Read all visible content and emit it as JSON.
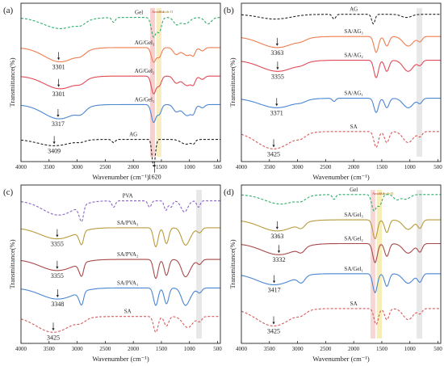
{
  "chart_data": [
    {
      "type": "line",
      "panel_label": "(a)",
      "xlabel": "Wavenumber (cm⁻¹)",
      "ylabel": "Transmittance(%)",
      "xlim": [
        4000,
        450
      ],
      "x_ticks": [
        4000,
        3500,
        3000,
        2500,
        2000,
        1500,
        1000,
        500
      ],
      "band_labels": [
        "Amide I",
        "Amide II"
      ],
      "bands": [
        {
          "label": "Amide I",
          "x0": 1700,
          "x1": 1615,
          "color": "#f3b6b6"
        },
        {
          "label": "Amide II",
          "x0": 1590,
          "x1": 1500,
          "color": "#f5e3a0"
        }
      ],
      "series": [
        {
          "name": "Gel",
          "color": "#2fae6a",
          "dash": "3,2",
          "base": 0.09,
          "depth": 1.0,
          "peaks": [
            [
              3300,
              300,
              0.07
            ],
            [
              2930,
              80,
              0.02
            ],
            [
              2350,
              30,
              0.03
            ],
            [
              1640,
              40,
              0.12
            ],
            [
              1540,
              40,
              0.09
            ],
            [
              1235,
              50,
              0.04
            ],
            [
              1080,
              80,
              0.04
            ],
            [
              670,
              60,
              0.04
            ]
          ]
        },
        {
          "name": "AG/Gel₃",
          "color": "#ee7d4f",
          "dash": "",
          "base": 0.28,
          "depth": 1.0,
          "peaks": [
            [
              3301,
              280,
              0.09
            ],
            [
              2930,
              80,
              0.02
            ],
            [
              1640,
              40,
              0.09
            ],
            [
              1540,
              40,
              0.06
            ],
            [
              1240,
              50,
              0.04
            ],
            [
              1040,
              90,
              0.05
            ],
            [
              930,
              30,
              0.03
            ],
            [
              770,
              40,
              0.02
            ]
          ]
        },
        {
          "name": "AG/Gel₂",
          "color": "#e24a55",
          "dash": "",
          "base": 0.46,
          "depth": 1.0,
          "peaks": [
            [
              3301,
              280,
              0.08
            ],
            [
              2930,
              80,
              0.02
            ],
            [
              1640,
              40,
              0.11
            ],
            [
              1540,
              40,
              0.06
            ],
            [
              1240,
              50,
              0.04
            ],
            [
              1040,
              90,
              0.06
            ],
            [
              930,
              30,
              0.03
            ],
            [
              770,
              40,
              0.02
            ]
          ]
        },
        {
          "name": "AG/Gel₁",
          "color": "#4a86d4",
          "dash": "",
          "base": 0.64,
          "depth": 1.0,
          "peaks": [
            [
              3317,
              280,
              0.09
            ],
            [
              2930,
              80,
              0.03
            ],
            [
              1640,
              40,
              0.11
            ],
            [
              1540,
              40,
              0.06
            ],
            [
              1240,
              50,
              0.04
            ],
            [
              1040,
              90,
              0.07
            ],
            [
              930,
              30,
              0.03
            ],
            [
              770,
              40,
              0.02
            ]
          ]
        },
        {
          "name": "AG",
          "color": "#222222",
          "dash": "3,2",
          "base": 0.86,
          "depth": 1.0,
          "peaks": [
            [
              3409,
              280,
              0.04
            ],
            [
              2930,
              80,
              0.01
            ],
            [
              2350,
              30,
              0.02
            ],
            [
              1650,
              25,
              0.12
            ],
            [
              1620,
              25,
              0.08
            ],
            [
              1060,
              90,
              0.03
            ],
            [
              930,
              30,
              0.02
            ]
          ]
        }
      ],
      "annotations": [
        {
          "text": "3301",
          "x": 3330,
          "series": 1
        },
        {
          "text": "3301",
          "x": 3330,
          "series": 2
        },
        {
          "text": "3317",
          "x": 3340,
          "series": 3
        },
        {
          "text": "3409",
          "x": 3409,
          "series": 4
        },
        {
          "text": "1620",
          "x": 1620,
          "series": 4
        }
      ]
    },
    {
      "type": "line",
      "panel_label": "(b)",
      "xlabel": "Wavenumber (cm⁻¹)",
      "ylabel": "Transmittance(%)",
      "xlim": [
        4000,
        450
      ],
      "x_ticks": [
        4000,
        3500,
        3000,
        2500,
        2000,
        1500,
        1000,
        500
      ],
      "band_labels": [],
      "bands": [
        {
          "label": "",
          "x0": 880,
          "x1": 780,
          "color": "#dcdcdc"
        }
      ],
      "series": [
        {
          "name": "AG",
          "color": "#222222",
          "dash": "3,2",
          "base": 0.07,
          "depth": 1.0,
          "peaks": [
            [
              3400,
              280,
              0.03
            ],
            [
              2350,
              30,
              0.03
            ],
            [
              1650,
              30,
              0.06
            ],
            [
              1060,
              90,
              0.02
            ]
          ]
        },
        {
          "name": "SA/AG₃",
          "color": "#ee7d4f",
          "dash": "",
          "base": 0.21,
          "depth": 1.0,
          "peaks": [
            [
              3363,
              300,
              0.07
            ],
            [
              2930,
              80,
              0.01
            ],
            [
              1600,
              40,
              0.1
            ],
            [
              1410,
              40,
              0.06
            ],
            [
              1030,
              90,
              0.06
            ],
            [
              820,
              40,
              0.03
            ]
          ]
        },
        {
          "name": "SA/AG₂",
          "color": "#e24a55",
          "dash": "",
          "base": 0.36,
          "depth": 1.0,
          "peaks": [
            [
              3355,
              300,
              0.07
            ],
            [
              2930,
              80,
              0.01
            ],
            [
              1600,
              40,
              0.11
            ],
            [
              1410,
              40,
              0.07
            ],
            [
              1030,
              90,
              0.07
            ],
            [
              820,
              40,
              0.03
            ]
          ]
        },
        {
          "name": "SA/AG₁",
          "color": "#4a86d4",
          "dash": "",
          "base": 0.6,
          "depth": 1.0,
          "peaks": [
            [
              3371,
              300,
              0.06
            ],
            [
              2930,
              80,
              0.01
            ],
            [
              2350,
              30,
              0.02
            ],
            [
              1600,
              40,
              0.09
            ],
            [
              1410,
              40,
              0.06
            ],
            [
              1030,
              90,
              0.06
            ],
            [
              820,
              40,
              0.03
            ]
          ]
        },
        {
          "name": "SA",
          "color": "#d65a5a",
          "dash": "3,2",
          "base": 0.81,
          "depth": 1.0,
          "peaks": [
            [
              3425,
              300,
              0.11
            ],
            [
              2930,
              80,
              0.02
            ],
            [
              1600,
              40,
              0.1
            ],
            [
              1410,
              40,
              0.07
            ],
            [
              1030,
              90,
              0.07
            ],
            [
              820,
              40,
              0.03
            ]
          ]
        }
      ],
      "annotations": [
        {
          "text": "3363",
          "x": 3363,
          "series": 1
        },
        {
          "text": "3355",
          "x": 3355,
          "series": 2
        },
        {
          "text": "3371",
          "x": 3371,
          "series": 3
        },
        {
          "text": "3425",
          "x": 3425,
          "series": 4
        }
      ]
    },
    {
      "type": "line",
      "panel_label": "(c)",
      "xlabel": "Wavenumber (cm⁻¹)",
      "ylabel": "Transmittance(%)",
      "xlim": [
        4000,
        450
      ],
      "x_ticks": [
        4000,
        3500,
        3000,
        2500,
        2000,
        1500,
        1000,
        500
      ],
      "band_labels": [],
      "bands": [
        {
          "label": "",
          "x0": 880,
          "x1": 780,
          "color": "#dcdcdc"
        }
      ],
      "series": [
        {
          "name": "PVA",
          "color": "#8a63c4",
          "dash": "3,2",
          "base": 0.1,
          "depth": 1.0,
          "peaks": [
            [
              3330,
              280,
              0.09
            ],
            [
              2940,
              40,
              0.06
            ],
            [
              2910,
              30,
              0.05
            ],
            [
              2350,
              30,
              0.04
            ],
            [
              1710,
              30,
              0.04
            ],
            [
              1420,
              30,
              0.06
            ],
            [
              1330,
              30,
              0.04
            ],
            [
              1090,
              60,
              0.07
            ],
            [
              840,
              30,
              0.04
            ]
          ]
        },
        {
          "name": "SA/PVA₃",
          "color": "#b89b3c",
          "dash": "",
          "base": 0.27,
          "depth": 1.0,
          "peaks": [
            [
              3355,
              300,
              0.07
            ],
            [
              2940,
              40,
              0.05
            ],
            [
              2910,
              30,
              0.04
            ],
            [
              1600,
              40,
              0.12
            ],
            [
              1410,
              40,
              0.1
            ],
            [
              1090,
              60,
              0.06
            ],
            [
              1030,
              80,
              0.06
            ],
            [
              820,
              40,
              0.03
            ]
          ]
        },
        {
          "name": "SA/PVA₂",
          "color": "#a84a4a",
          "dash": "",
          "base": 0.47,
          "depth": 1.0,
          "peaks": [
            [
              3355,
              300,
              0.07
            ],
            [
              2940,
              40,
              0.05
            ],
            [
              2910,
              30,
              0.04
            ],
            [
              1600,
              40,
              0.12
            ],
            [
              1410,
              40,
              0.1
            ],
            [
              1090,
              60,
              0.06
            ],
            [
              1030,
              80,
              0.06
            ],
            [
              820,
              40,
              0.03
            ]
          ]
        },
        {
          "name": "SA/PVA₁",
          "color": "#4a86d4",
          "dash": "",
          "base": 0.65,
          "depth": 1.0,
          "peaks": [
            [
              3348,
              300,
              0.07
            ],
            [
              2940,
              40,
              0.05
            ],
            [
              2910,
              30,
              0.04
            ],
            [
              1600,
              40,
              0.11
            ],
            [
              1410,
              40,
              0.1
            ],
            [
              1090,
              60,
              0.06
            ],
            [
              1030,
              80,
              0.06
            ],
            [
              820,
              40,
              0.03
            ]
          ]
        },
        {
          "name": "SA",
          "color": "#d65a5a",
          "dash": "3,2",
          "base": 0.83,
          "depth": 1.0,
          "peaks": [
            [
              3425,
              300,
              0.1
            ],
            [
              2930,
              80,
              0.02
            ],
            [
              1600,
              40,
              0.1
            ],
            [
              1410,
              40,
              0.06
            ],
            [
              1030,
              90,
              0.07
            ],
            [
              820,
              40,
              0.03
            ]
          ]
        }
      ],
      "annotations": [
        {
          "text": "3355",
          "x": 3355,
          "series": 1
        },
        {
          "text": "3355",
          "x": 3355,
          "series": 2
        },
        {
          "text": "3348",
          "x": 3348,
          "series": 3
        },
        {
          "text": "3425",
          "x": 3425,
          "series": 4
        }
      ]
    },
    {
      "type": "line",
      "panel_label": "(d)",
      "xlabel": "Wavenumber (cm⁻¹)",
      "ylabel": "Transmittance(%)",
      "xlim": [
        4000,
        450
      ],
      "x_ticks": [
        4000,
        3500,
        3000,
        2500,
        2000,
        1500,
        1000,
        500
      ],
      "band_labels": [
        "Amide I",
        "Amide II"
      ],
      "bands": [
        {
          "label": "Amide I",
          "x0": 1700,
          "x1": 1615,
          "color": "#f3c0c0"
        },
        {
          "label": "Amide II",
          "x0": 1590,
          "x1": 1500,
          "color": "#f0e58f"
        },
        {
          "label": "",
          "x0": 880,
          "x1": 780,
          "color": "#dcdcdc"
        }
      ],
      "series": [
        {
          "name": "Gel",
          "color": "#2fae6a",
          "dash": "3,2",
          "base": 0.06,
          "depth": 1.0,
          "peaks": [
            [
              3300,
              280,
              0.06
            ],
            [
              2930,
              80,
              0.02
            ],
            [
              2350,
              30,
              0.03
            ],
            [
              1640,
              40,
              0.1
            ],
            [
              1540,
              40,
              0.07
            ],
            [
              1240,
              50,
              0.03
            ],
            [
              1080,
              80,
              0.03
            ]
          ]
        },
        {
          "name": "SA/Gel₃",
          "color": "#b89b3c",
          "dash": "",
          "base": 0.22,
          "depth": 1.0,
          "peaks": [
            [
              3363,
              300,
              0.07
            ],
            [
              2930,
              60,
              0.03
            ],
            [
              1620,
              40,
              0.12
            ],
            [
              1410,
              40,
              0.08
            ],
            [
              1030,
              90,
              0.06
            ],
            [
              820,
              40,
              0.05
            ]
          ]
        },
        {
          "name": "SA/Gel₂",
          "color": "#a84a4a",
          "dash": "",
          "base": 0.37,
          "depth": 1.0,
          "peaks": [
            [
              3332,
              300,
              0.07
            ],
            [
              2930,
              60,
              0.03
            ],
            [
              1620,
              40,
              0.12
            ],
            [
              1410,
              40,
              0.08
            ],
            [
              1030,
              90,
              0.06
            ],
            [
              820,
              40,
              0.05
            ]
          ]
        },
        {
          "name": "SA/Gel₁",
          "color": "#4a86d4",
          "dash": "",
          "base": 0.56,
          "depth": 1.0,
          "peaks": [
            [
              3417,
              300,
              0.07
            ],
            [
              2930,
              60,
              0.04
            ],
            [
              1620,
              40,
              0.12
            ],
            [
              1410,
              40,
              0.08
            ],
            [
              1030,
              90,
              0.06
            ],
            [
              820,
              40,
              0.05
            ]
          ]
        },
        {
          "name": "SA",
          "color": "#d65a5a",
          "dash": "3,2",
          "base": 0.78,
          "depth": 1.0,
          "peaks": [
            [
              3425,
              300,
              0.11
            ],
            [
              2930,
              80,
              0.02
            ],
            [
              1600,
              40,
              0.1
            ],
            [
              1410,
              40,
              0.07
            ],
            [
              1030,
              90,
              0.07
            ],
            [
              820,
              40,
              0.03
            ]
          ]
        }
      ],
      "annotations": [
        {
          "text": "3363",
          "x": 3363,
          "series": 1
        },
        {
          "text": "3332",
          "x": 3332,
          "series": 2
        },
        {
          "text": "3417",
          "x": 3417,
          "series": 3
        },
        {
          "text": "3425",
          "x": 3425,
          "series": 4
        }
      ]
    }
  ]
}
